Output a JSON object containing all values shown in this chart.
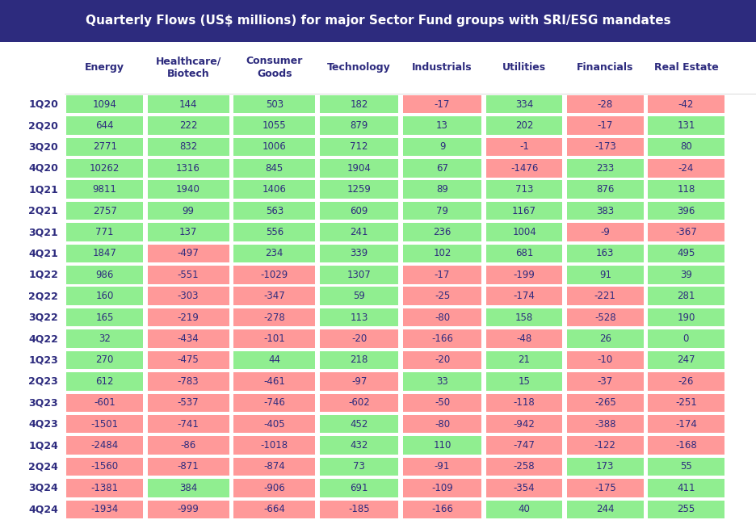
{
  "title": "Quarterly Flows (US$ millions) for major Sector Fund groups with SRI/ESG mandates",
  "title_bg": "#2d2b7e",
  "title_color": "#ffffff",
  "header_color": "#2d2b7e",
  "columns": [
    "Energy",
    "Healthcare/\nBiotech",
    "Consumer\nGoods",
    "Technology",
    "Industrials",
    "Utilities",
    "Financials",
    "Real Estate"
  ],
  "rows": [
    "1Q20",
    "2Q20",
    "3Q20",
    "4Q20",
    "1Q21",
    "2Q21",
    "3Q21",
    "4Q21",
    "1Q22",
    "2Q22",
    "3Q22",
    "4Q22",
    "1Q23",
    "2Q23",
    "3Q23",
    "4Q23",
    "1Q24",
    "2Q24",
    "3Q24",
    "4Q24"
  ],
  "data": [
    [
      1094,
      144,
      503,
      182,
      -17,
      334,
      -28,
      -42
    ],
    [
      644,
      222,
      1055,
      879,
      13,
      202,
      -17,
      131
    ],
    [
      2771,
      832,
      1006,
      712,
      9,
      -1,
      -173,
      80
    ],
    [
      10262,
      1316,
      845,
      1904,
      67,
      -1476,
      233,
      -24
    ],
    [
      9811,
      1940,
      1406,
      1259,
      89,
      713,
      876,
      118
    ],
    [
      2757,
      99,
      563,
      609,
      79,
      1167,
      383,
      396
    ],
    [
      771,
      137,
      556,
      241,
      236,
      1004,
      -9,
      -367
    ],
    [
      1847,
      -497,
      234,
      339,
      102,
      681,
      163,
      495
    ],
    [
      986,
      -551,
      -1029,
      1307,
      -17,
      -199,
      91,
      39
    ],
    [
      160,
      -303,
      -347,
      59,
      -25,
      -174,
      -221,
      281
    ],
    [
      165,
      -219,
      -278,
      113,
      -80,
      158,
      -528,
      190
    ],
    [
      32,
      -434,
      -101,
      -20,
      -166,
      -48,
      26,
      0
    ],
    [
      270,
      -475,
      44,
      218,
      -20,
      21,
      -10,
      247
    ],
    [
      612,
      -783,
      -461,
      -97,
      33,
      15,
      -37,
      -26
    ],
    [
      -601,
      -537,
      -746,
      -602,
      -50,
      -118,
      -265,
      -251
    ],
    [
      -1501,
      -741,
      -405,
      452,
      -80,
      -942,
      -388,
      -174
    ],
    [
      -2484,
      -86,
      -1018,
      432,
      110,
      -747,
      -122,
      -168
    ],
    [
      -1560,
      -871,
      -874,
      73,
      -91,
      -258,
      173,
      55
    ],
    [
      -1381,
      384,
      -906,
      691,
      -109,
      -354,
      -175,
      411
    ],
    [
      -1934,
      -999,
      -664,
      -185,
      -166,
      40,
      244,
      255
    ]
  ],
  "positive_color": "#90ee90",
  "negative_color": "#ff9999",
  "row_label_color": "#2d2b7e",
  "cell_text_color": "#2d2b7e",
  "bg_color": "#ffffff",
  "font_size_title": 11,
  "font_size_header": 9,
  "font_size_cell": 8.5,
  "font_size_row": 9
}
